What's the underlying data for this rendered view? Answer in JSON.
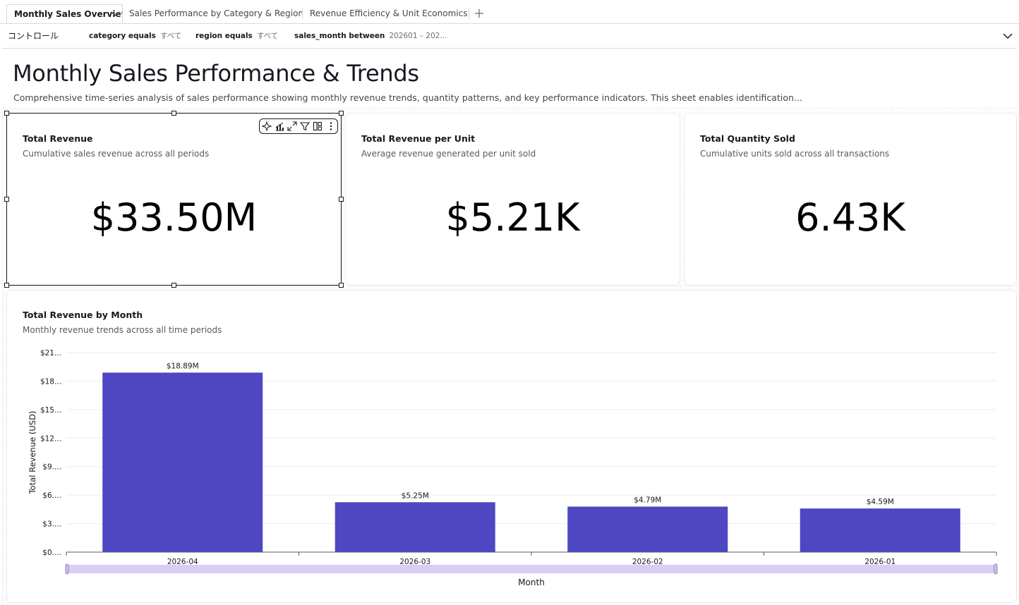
{
  "tabs": [
    {
      "label": "Monthly Sales Overview",
      "active": true
    },
    {
      "label": "Sales Performance by Category & Region",
      "active": false
    },
    {
      "label": "Revenue Efficiency & Unit Economics",
      "active": false
    }
  ],
  "controls": {
    "label": "コントロール",
    "filters": [
      {
        "field": "category equals",
        "value": "すべて"
      },
      {
        "field": "region equals",
        "value": "すべて"
      },
      {
        "field": "sales_month between",
        "value": "202601 – 202..."
      }
    ]
  },
  "sheet": {
    "title": "Monthly Sales Performance & Trends",
    "description": "Comprehensive time-series analysis of sales performance showing monthly revenue trends, quantity patterns, and key performance indicators. This sheet enables identification..."
  },
  "kpis": [
    {
      "title": "Total Revenue",
      "subtitle": "Cumulative sales revenue across all periods",
      "value": "$33.50M"
    },
    {
      "title": "Total Revenue per Unit",
      "subtitle": "Average revenue generated per unit sold",
      "value": "$5.21K"
    },
    {
      "title": "Total Quantity Sold",
      "subtitle": "Cumulative units sold across all transactions",
      "value": "6.43K"
    }
  ],
  "toolbar_icons": [
    "sparkle-icon",
    "chart-type-icon",
    "expand-icon",
    "filter-icon",
    "layout-icon",
    "more-icon"
  ],
  "chart_data": {
    "type": "bar",
    "title": "Total Revenue by Month",
    "subtitle": "Monthly revenue trends across all time periods",
    "xlabel": "Month",
    "ylabel": "Total Revenue (USD)",
    "categories": [
      "2026-04",
      "2026-03",
      "2026-02",
      "2026-01"
    ],
    "values": [
      18.89,
      5.25,
      4.79,
      4.59
    ],
    "data_labels": [
      "$18.89M",
      "$5.25M",
      "$4.79M",
      "$4.59M"
    ],
    "yticks": [
      0,
      3,
      6,
      9,
      12,
      15,
      18,
      21
    ],
    "ytick_labels": [
      "$0....",
      "$3....",
      "$6....",
      "$9....",
      "$12...",
      "$15...",
      "$18...",
      "$21..."
    ],
    "ylim": [
      0,
      21
    ],
    "unit": "millions USD",
    "grid": true,
    "color": "#4f46c1"
  }
}
